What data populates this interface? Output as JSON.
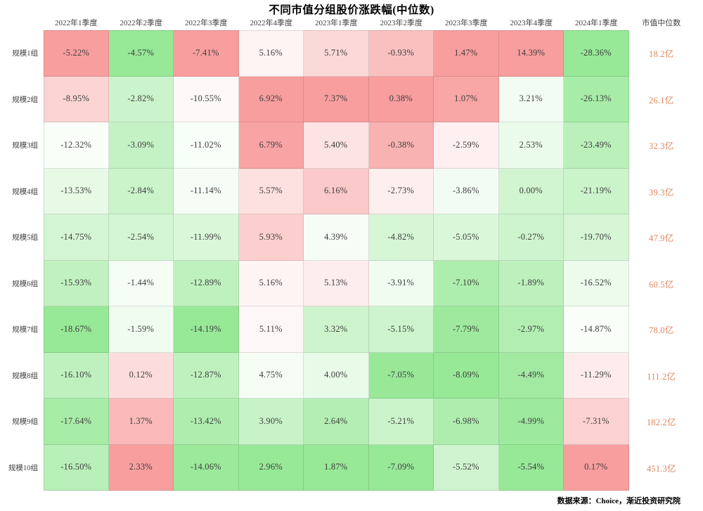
{
  "chart_data": {
    "type": "heatmap",
    "title": "不同市值分组股价涨跌幅(中位数)",
    "columns": [
      "2022年1季度",
      "2022年2季度",
      "2022年3季度",
      "2022年4季度",
      "2023年1季度",
      "2023年2季度",
      "2023年3季度",
      "2023年4季度",
      "2024年1季度"
    ],
    "row_labels": [
      "规模1组",
      "规模2组",
      "规模3组",
      "规模4组",
      "规模5组",
      "规模6组",
      "规模7组",
      "规模8组",
      "规模9组",
      "规模10组"
    ],
    "values_pct": [
      [
        -5.22,
        -4.57,
        -7.41,
        5.16,
        5.71,
        -0.93,
        1.47,
        14.39,
        -28.36
      ],
      [
        -8.95,
        -2.82,
        -10.55,
        6.92,
        7.37,
        0.38,
        1.07,
        3.21,
        -26.13
      ],
      [
        -12.32,
        -3.09,
        -11.02,
        6.79,
        5.4,
        -0.38,
        -2.59,
        2.53,
        -23.49
      ],
      [
        -13.53,
        -2.84,
        -11.14,
        5.57,
        6.16,
        -2.73,
        -3.86,
        0.0,
        -21.19
      ],
      [
        -14.75,
        -2.54,
        -11.99,
        5.93,
        4.39,
        -4.82,
        -5.05,
        -0.27,
        -19.7
      ],
      [
        -15.93,
        -1.44,
        -12.89,
        5.16,
        5.13,
        -3.91,
        -7.1,
        -1.89,
        -16.52
      ],
      [
        -18.67,
        -1.59,
        -14.19,
        5.11,
        3.32,
        -5.15,
        -7.79,
        -2.97,
        -14.87
      ],
      [
        -16.1,
        0.12,
        -12.87,
        4.75,
        4.0,
        -7.05,
        -8.09,
        -4.49,
        -11.29
      ],
      [
        -17.64,
        1.37,
        -13.42,
        3.9,
        2.64,
        -5.21,
        -6.98,
        -4.99,
        -7.31
      ],
      [
        -16.5,
        2.33,
        -14.06,
        2.96,
        1.87,
        -7.09,
        -5.52,
        -5.54,
        0.17
      ]
    ],
    "market_cap_header": "市值中位数",
    "market_cap_median": [
      "18.2亿",
      "26.1亿",
      "32.3亿",
      "39.3亿",
      "47.9亿",
      "60.5亿",
      "78.0亿",
      "111.2亿",
      "182.2亿",
      "451.3亿"
    ],
    "color_scale": {
      "mode": "per-column: min→green, midpoint→white, max→red",
      "min_color": "#97E897",
      "mid_color": "#FFFFFF",
      "max_color": "#F89E9E"
    },
    "source_note": "数据来源：Choice，渐近投资研究院"
  },
  "colors": {
    "cap_value_text": "#E0875F",
    "cell_text": "#3D3D3D",
    "header_text": "#3D3D3D"
  }
}
